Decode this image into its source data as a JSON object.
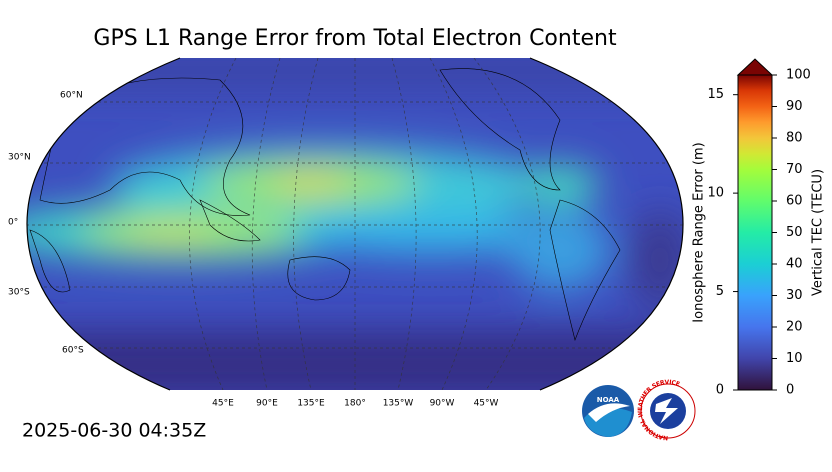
{
  "header": {
    "title": "GPS L1 Range Error from Total Electron Content",
    "timestamp": "2025-06-30 04:35Z"
  },
  "map": {
    "lat_labels": [
      "60°N",
      "30°N",
      "0°",
      "30°S",
      "60°S"
    ],
    "lon_labels": [
      "45°E",
      "90°E",
      "135°E",
      "180°",
      "135°W",
      "90°W",
      "45°W"
    ]
  },
  "colorbar": {
    "label": "Vertical TEC (TECU)",
    "ylim": [
      0,
      100
    ],
    "yticks": [
      0,
      10,
      20,
      30,
      40,
      50,
      60,
      70,
      80,
      90,
      100
    ],
    "y2label": "Ionosphere Range Error (m)",
    "y2lim": [
      0,
      16
    ],
    "y2ticks": [
      0,
      5,
      10,
      15
    ]
  },
  "logos": {
    "noaa": "NOAA",
    "nws": "NATIONAL WEATHER SERVICE"
  }
}
